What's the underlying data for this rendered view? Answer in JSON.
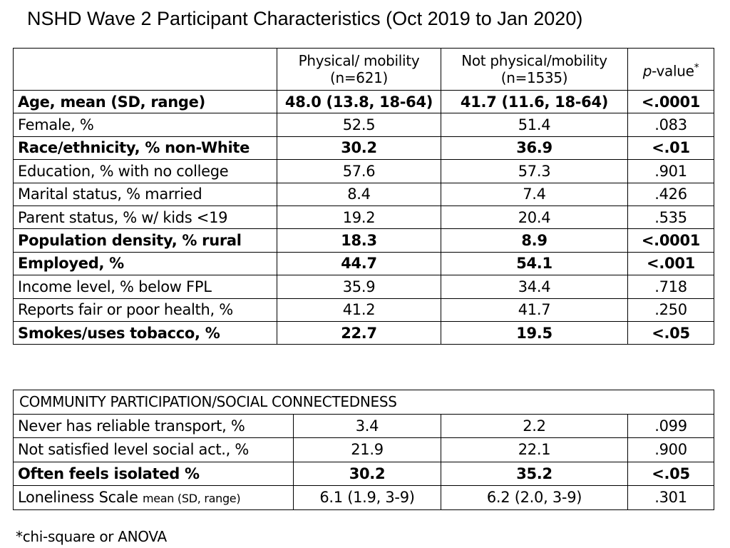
{
  "title": "NSHD Wave 2 Participant Characteristics (Oct 2019 to Jan 2020)",
  "table1": {
    "header": {
      "col1_line1": "Physical/ mobility",
      "col1_line2": "(n=621)",
      "col2_line1": "Not physical/mobility",
      "col2_line2": "(n=1535)",
      "col3_italic": "p",
      "col3_text": "-value",
      "col3_star": "*"
    },
    "rows": [
      {
        "label": "Age, mean (SD, range)",
        "a": "48.0 (13.8, 18-64)",
        "b": "41.7 (11.6, 18-64)",
        "p": "<.0001"
      },
      {
        "label": "Female, %",
        "a": "52.5",
        "b": "51.4",
        "p": ".083"
      },
      {
        "label": "Race/ethnicity, % non-White",
        "a": "30.2",
        "b": "36.9",
        "p": "<.01"
      },
      {
        "label": "Education, % with no college",
        "a": "57.6",
        "b": "57.3",
        "p": ".901"
      },
      {
        "label": "Marital status, % married",
        "a": "8.4",
        "b": "7.4",
        "p": ".426"
      },
      {
        "label": "Parent status, % w/ kids <19",
        "a": "19.2",
        "b": "20.4",
        "p": ".535"
      },
      {
        "label": "Population density, % rural",
        "a": "18.3",
        "b": "8.9",
        "p": "<.0001"
      },
      {
        "label": "Employed, %",
        "a": "44.7",
        "b": "54.1",
        "p": "<.001"
      },
      {
        "label": "Income level, % below FPL",
        "a": "35.9",
        "b": "34.4",
        "p": ".718"
      },
      {
        "label": "Reports fair or poor health, %",
        "a": "41.2",
        "b": "41.7",
        "p": ".250"
      },
      {
        "label": "Smokes/uses tobacco, %",
        "a": "22.7",
        "b": "19.5",
        "p": "<.05"
      }
    ]
  },
  "table2": {
    "section_title": "COMMUNITY PARTICIPATION/SOCIAL CONNECTEDNESS",
    "rows": [
      {
        "label": "Never has reliable transport, %",
        "a": "3.4",
        "b": "2.2",
        "p": ".099"
      },
      {
        "label": "Not satisfied level social act., %",
        "a": "21.9",
        "b": "22.1",
        "p": ".900"
      },
      {
        "label": "Often feels isolated  %",
        "a": "30.2",
        "b": "35.2",
        "p": "<.05"
      },
      {
        "label": "Loneliness Scale",
        "label_small": "mean (SD, range)",
        "a": "6.1 (1.9, 3-9)",
        "b": "6.2 (2.0, 3-9)",
        "p": ".301"
      }
    ]
  },
  "footnote": "*chi-square or ANOVA"
}
